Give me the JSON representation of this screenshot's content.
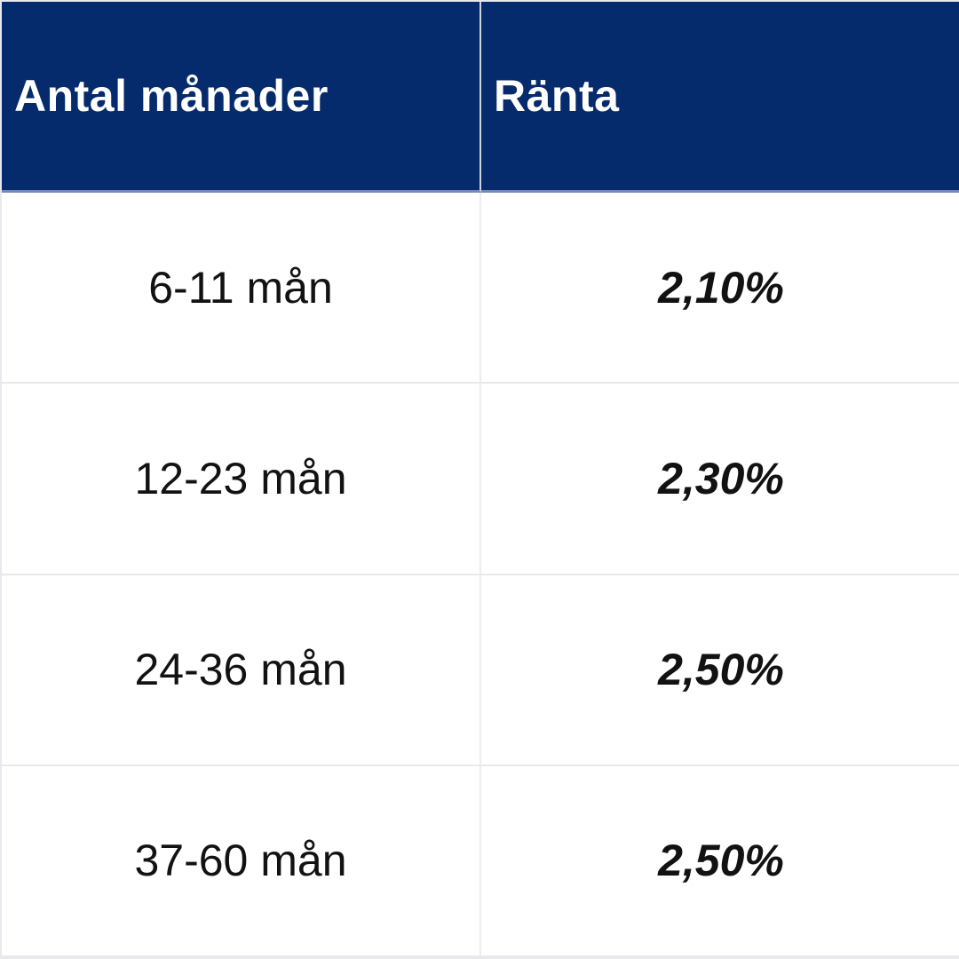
{
  "header": {
    "months_label": "Antal månader",
    "rate_label": "Ränta"
  },
  "rows": [
    {
      "months": "6-11 mån",
      "rate": "2,10%"
    },
    {
      "months": "12-23 mån",
      "rate": "2,30%"
    },
    {
      "months": "24-36 mån",
      "rate": "2,50%"
    },
    {
      "months": "37-60 mån",
      "rate": "2,50%"
    }
  ],
  "colors": {
    "header_bg": "#052b6c",
    "header_text": "#ffffff",
    "body_text": "#121212",
    "divider": "#ececec",
    "header_divider": "#cdd3dc",
    "header_bottom_edge": "#7688b4"
  },
  "chart_data": {
    "type": "table",
    "title": "",
    "columns": [
      "Antal månader",
      "Ränta"
    ],
    "rows": [
      [
        "6-11 mån",
        "2,10%"
      ],
      [
        "12-23 mån",
        "2,30%"
      ],
      [
        "24-36 mån",
        "2,50%"
      ],
      [
        "37-60 mån",
        "2,50%"
      ]
    ],
    "rate_values_percent": [
      2.1,
      2.3,
      2.5,
      2.5
    ]
  }
}
